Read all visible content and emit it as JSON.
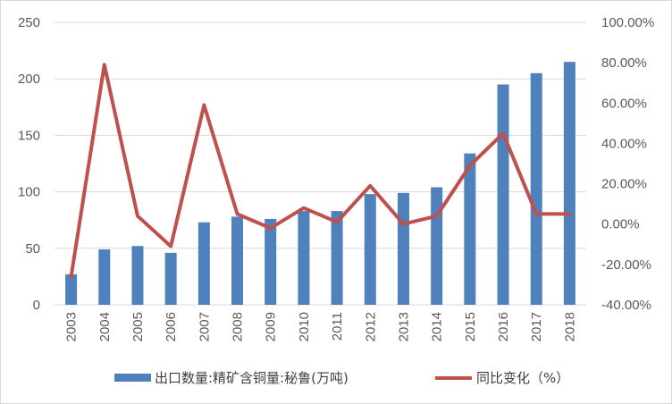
{
  "chart_data": {
    "type": "bar",
    "categories": [
      "2003",
      "2004",
      "2005",
      "2006",
      "2007",
      "2008",
      "2009",
      "2010",
      "2011",
      "2012",
      "2013",
      "2014",
      "2015",
      "2016",
      "2017",
      "2018"
    ],
    "series": [
      {
        "name": "出口数量:精矿含铜量:秘鲁(万吨)",
        "type": "bar",
        "axis": "left",
        "color": "#4f81bd",
        "values": [
          27,
          49,
          52,
          46,
          73,
          78,
          76,
          83,
          83,
          98,
          99,
          104,
          134,
          195,
          205,
          215
        ]
      },
      {
        "name": "同比变化（%）",
        "type": "line",
        "axis": "right",
        "color": "#c0504d",
        "values": [
          -26,
          79,
          4,
          -11,
          59,
          5,
          -2,
          8,
          1,
          19,
          0,
          4,
          29,
          45,
          5,
          5
        ]
      }
    ],
    "y_left": {
      "min": 0,
      "max": 250,
      "ticks": [
        "0",
        "50",
        "100",
        "150",
        "200",
        "250"
      ]
    },
    "y_right": {
      "min": -40,
      "max": 100,
      "ticks": [
        "-40.00%",
        "-20.00%",
        "0.00%",
        "20.00%",
        "40.00%",
        "60.00%",
        "80.00%",
        "100.00%"
      ]
    },
    "grid": true,
    "legend_position": "bottom"
  }
}
